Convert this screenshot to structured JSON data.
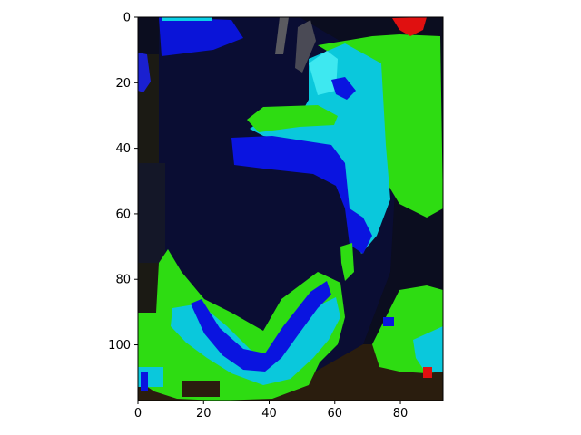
{
  "plot": {
    "type": "image",
    "x_ticks": [
      "0",
      "20",
      "40",
      "60",
      "80"
    ],
    "y_ticks": [
      "0",
      "20",
      "40",
      "60",
      "80",
      "100"
    ],
    "xlim": [
      0,
      93
    ],
    "ylim": [
      117,
      0
    ],
    "y_inverted": true
  },
  "colors": {
    "background_dark": "#0c0f24",
    "blue": "#0a14e0",
    "cyan": "#0ac8dc",
    "green": "#2edc10",
    "red": "#e01010"
  }
}
